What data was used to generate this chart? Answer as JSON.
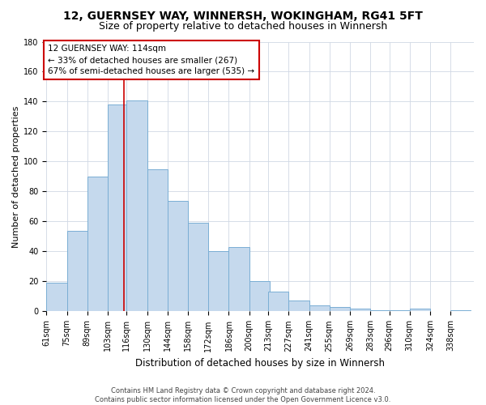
{
  "title": "12, GUERNSEY WAY, WINNERSH, WOKINGHAM, RG41 5FT",
  "subtitle": "Size of property relative to detached houses in Winnersh",
  "xlabel": "Distribution of detached houses by size in Winnersh",
  "ylabel": "Number of detached properties",
  "bar_labels": [
    "61sqm",
    "75sqm",
    "89sqm",
    "103sqm",
    "116sqm",
    "130sqm",
    "144sqm",
    "158sqm",
    "172sqm",
    "186sqm",
    "200sqm",
    "213sqm",
    "227sqm",
    "241sqm",
    "255sqm",
    "269sqm",
    "283sqm",
    "296sqm",
    "310sqm",
    "324sqm",
    "338sqm"
  ],
  "bar_values": [
    19,
    54,
    90,
    138,
    141,
    95,
    74,
    59,
    40,
    43,
    20,
    13,
    7,
    4,
    3,
    2,
    1,
    1,
    2,
    0,
    1
  ],
  "bar_color": "#c5d9ed",
  "bar_edgecolor": "#7aaed4",
  "grid_color": "#d0d8e4",
  "annotation_text": "12 GUERNSEY WAY: 114sqm\n← 33% of detached houses are smaller (267)\n67% of semi-detached houses are larger (535) →",
  "vline_x": 114,
  "ylim": [
    0,
    180
  ],
  "bin_width": 14,
  "footnote": "Contains HM Land Registry data © Crown copyright and database right 2024.\nContains public sector information licensed under the Open Government Licence v3.0.",
  "box_color": "#cc0000",
  "title_fontsize": 10,
  "subtitle_fontsize": 9,
  "xlabel_fontsize": 8.5,
  "ylabel_fontsize": 8,
  "tick_fontsize": 7,
  "annotation_fontsize": 7.5,
  "footnote_fontsize": 6
}
